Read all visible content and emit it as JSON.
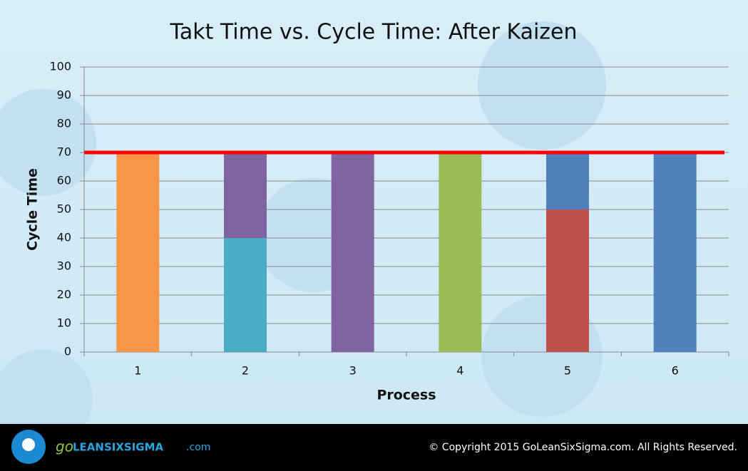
{
  "chart_data": {
    "type": "stacked_bar",
    "title": "Takt Time vs. Cycle Time: After Kaizen",
    "x_label": "Process",
    "y_label": "Cycle Time",
    "categories": [
      "1",
      "2",
      "3",
      "4",
      "5",
      "6"
    ],
    "series": [
      {
        "color": "#f79646",
        "values": [
          70,
          null,
          null,
          null,
          null,
          null
        ]
      },
      {
        "color": "#4bacc6",
        "values": [
          null,
          40,
          null,
          null,
          null,
          null
        ]
      },
      {
        "color": "#8064a2",
        "values": [
          null,
          30,
          70,
          null,
          null,
          null
        ]
      },
      {
        "color": "#9bbb59",
        "values": [
          null,
          null,
          null,
          70,
          null,
          null
        ]
      },
      {
        "color": "#c0504d",
        "values": [
          null,
          null,
          null,
          null,
          50,
          null
        ]
      },
      {
        "color": "#4f81bd",
        "values": [
          null,
          null,
          null,
          null,
          20,
          70
        ]
      }
    ],
    "takt_time": 70,
    "takt_color": "#ff0000",
    "ylim": [
      0,
      100
    ],
    "yticks": [
      0,
      10,
      20,
      30,
      40,
      50,
      60,
      70,
      80,
      90,
      100
    ],
    "grid": true
  },
  "footer": {
    "logo_go": "go",
    "logo_name": "LEANSIXSIGMA",
    "logo_suffix": ".com",
    "copyright": "© Copyright 2015 GoLeanSixSigma.com. All Rights Reserved."
  }
}
